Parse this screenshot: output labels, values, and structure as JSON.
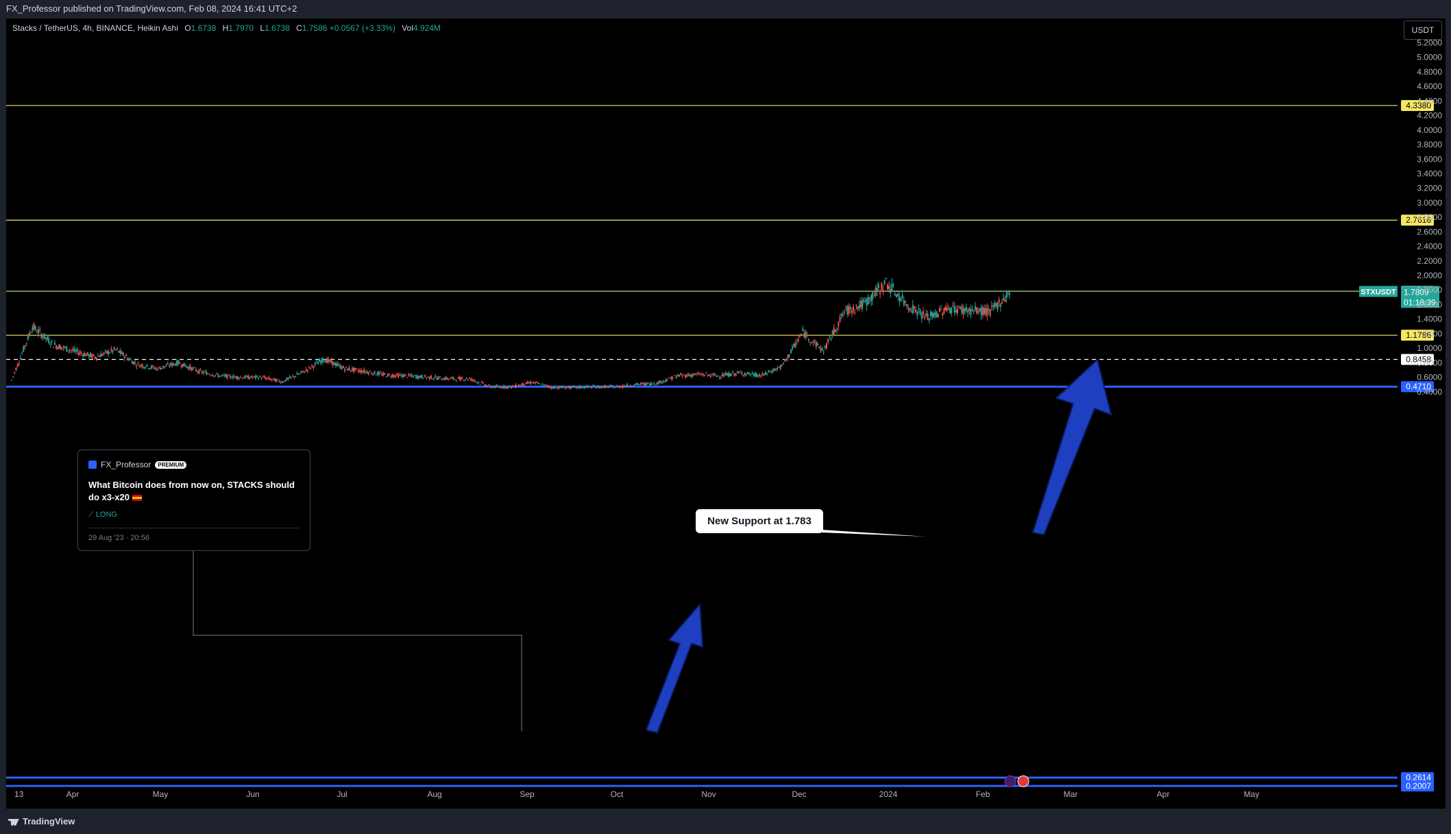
{
  "header": {
    "published": "FX_Professor published on TradingView.com, Feb 08, 2024 16:41 UTC+2"
  },
  "legend": {
    "symbol": "Stacks / TetherUS, 4h, BINANCE, Heikin Ashi",
    "o_label": "O",
    "o": "1.6738",
    "h_label": "H",
    "h": "1.7970",
    "l_label": "L",
    "l": "1.6738",
    "c_label": "C",
    "c": "1.7586",
    "change": "+0.0567 (+3.33%)",
    "vol_label": "Vol",
    "vol": "4.924M"
  },
  "currency_button": "USDT",
  "footer": {
    "brand": "TradingView"
  },
  "idea_card": {
    "author": "FX_Professor",
    "badge": "PREMIUM",
    "title": "What Bitcoin does from now on, STACKS should do x3-x20",
    "position": "LONG",
    "date": "29 Aug '23 · 20:56"
  },
  "callout": "New Support at 1.783",
  "colors": {
    "background": "#000000",
    "panel": "#1e222d",
    "up": "#26a69a",
    "down": "#ef5350",
    "level_yellow": "#f5e663",
    "level_blue": "#2962ff",
    "arrow_blue": "#1e3fbf"
  },
  "chart_data": {
    "type": "candlestick",
    "symbol": "STXUSDT",
    "y_scale": {
      "min": 0.35,
      "max": 5.3
    },
    "y_ticks": [
      "5.2000",
      "5.0000",
      "4.8000",
      "4.6000",
      "4.4000",
      "4.2000",
      "4.0000",
      "3.8000",
      "3.6000",
      "3.4000",
      "3.2000",
      "3.0000",
      "2.8000",
      "2.6000",
      "2.4000",
      "2.2000",
      "2.0000",
      "1.8000",
      "1.6000",
      "1.4000",
      "1.2000",
      "1.0000",
      "0.8000",
      "0.6000",
      "0.4000"
    ],
    "x_ticks": [
      "13",
      "Apr",
      "May",
      "Jun",
      "Jul",
      "Aug",
      "Sep",
      "Oct",
      "Nov",
      "Dec",
      "2024",
      "Feb",
      "Mar",
      "Apr",
      "May"
    ],
    "price_series": [
      {
        "x": "Mar 13",
        "y": 0.56
      },
      {
        "x": "Mar 20",
        "y": 1.3
      },
      {
        "x": "Mar 27",
        "y": 1.05
      },
      {
        "x": "Apr 03",
        "y": 0.96
      },
      {
        "x": "Apr 10",
        "y": 0.88
      },
      {
        "x": "Apr 17",
        "y": 0.98
      },
      {
        "x": "Apr 24",
        "y": 0.78
      },
      {
        "x": "May 01",
        "y": 0.72
      },
      {
        "x": "May 08",
        "y": 0.8
      },
      {
        "x": "May 15",
        "y": 0.68
      },
      {
        "x": "May 22",
        "y": 0.62
      },
      {
        "x": "May 29",
        "y": 0.6
      },
      {
        "x": "Jun 05",
        "y": 0.6
      },
      {
        "x": "Jun 12",
        "y": 0.54
      },
      {
        "x": "Jun 19",
        "y": 0.67
      },
      {
        "x": "Jun 26",
        "y": 0.85
      },
      {
        "x": "Jul 03",
        "y": 0.72
      },
      {
        "x": "Jul 10",
        "y": 0.68
      },
      {
        "x": "Jul 17",
        "y": 0.63
      },
      {
        "x": "Jul 24",
        "y": 0.62
      },
      {
        "x": "Jul 31",
        "y": 0.6
      },
      {
        "x": "Aug 07",
        "y": 0.58
      },
      {
        "x": "Aug 14",
        "y": 0.58
      },
      {
        "x": "Aug 21",
        "y": 0.47
      },
      {
        "x": "Aug 28",
        "y": 0.47
      },
      {
        "x": "Sep 04",
        "y": 0.53
      },
      {
        "x": "Sep 11",
        "y": 0.46
      },
      {
        "x": "Sep 18",
        "y": 0.46
      },
      {
        "x": "Sep 25",
        "y": 0.47
      },
      {
        "x": "Oct 02",
        "y": 0.47
      },
      {
        "x": "Oct 09",
        "y": 0.5
      },
      {
        "x": "Oct 16",
        "y": 0.52
      },
      {
        "x": "Oct 23",
        "y": 0.62
      },
      {
        "x": "Oct 30",
        "y": 0.64
      },
      {
        "x": "Nov 06",
        "y": 0.62
      },
      {
        "x": "Nov 13",
        "y": 0.66
      },
      {
        "x": "Nov 20",
        "y": 0.62
      },
      {
        "x": "Nov 27",
        "y": 0.75
      },
      {
        "x": "Dec 04",
        "y": 1.22
      },
      {
        "x": "Dec 11",
        "y": 0.96
      },
      {
        "x": "Dec 18",
        "y": 1.5
      },
      {
        "x": "Dec 25",
        "y": 1.62
      },
      {
        "x": "Jan 01",
        "y": 1.9
      },
      {
        "x": "Jan 08",
        "y": 1.6
      },
      {
        "x": "Jan 15",
        "y": 1.42
      },
      {
        "x": "Jan 22",
        "y": 1.55
      },
      {
        "x": "Jan 29",
        "y": 1.52
      },
      {
        "x": "Feb 05",
        "y": 1.5
      },
      {
        "x": "Feb 08",
        "y": 1.78
      }
    ],
    "levels": [
      {
        "label": "4.3380",
        "value": 4.338,
        "color": "#f5e663",
        "text_color": "#000000"
      },
      {
        "label": "2.7616",
        "value": 2.7616,
        "color": "#f5e663",
        "text_color": "#000000"
      },
      {
        "label": "1.7833",
        "value": 1.7833,
        "color": "#f5e663",
        "text_color": "#000000"
      },
      {
        "label": "1.1786",
        "value": 1.1786,
        "color": "#f5e663",
        "text_color": "#000000"
      },
      {
        "label": "0.8458",
        "value": 0.8458,
        "color": "#ffffff",
        "text_color": "#000000",
        "dashed": true
      },
      {
        "label": "0.4710",
        "value": 0.471,
        "color": "#2962ff",
        "text_color": "#ffffff"
      },
      {
        "label": "0.2614",
        "value": 0.2614,
        "color": "#2962ff",
        "text_color": "#ffffff"
      },
      {
        "label": "0.2007",
        "value": 0.2007,
        "color": "#2962ff",
        "text_color": "#ffffff"
      }
    ],
    "current": {
      "symbol": "STXUSDT",
      "price": "1.7809",
      "countdown": "01:18:39",
      "value": 1.7809
    }
  }
}
